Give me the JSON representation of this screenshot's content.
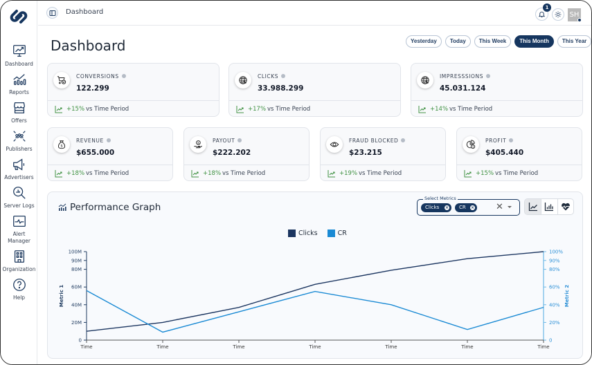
{
  "app": {
    "breadcrumb": "Dashboard",
    "notifications_count": "1",
    "avatar_initials": "SH"
  },
  "sidebar": {
    "items": [
      {
        "label": "Dashboard",
        "icon": "monitor-chart-icon"
      },
      {
        "label": "Reports",
        "icon": "bar-trend-icon"
      },
      {
        "label": "Offers",
        "icon": "store-icon"
      },
      {
        "label": "Publishers",
        "icon": "users-network-icon"
      },
      {
        "label": "Advertisers",
        "icon": "megaphone-icon"
      },
      {
        "label": "Server Logs",
        "icon": "search-chart-icon"
      },
      {
        "label": "Alert Manager",
        "icon": "pulse-monitor-icon"
      },
      {
        "label": "Organization",
        "icon": "building-icon"
      },
      {
        "label": "Help",
        "icon": "help-circle-icon"
      }
    ]
  },
  "page": {
    "title": "Dashboard",
    "periods": [
      "Yesterday",
      "Today",
      "This Week",
      "This Month",
      "This Year"
    ],
    "active_period": "This Month"
  },
  "cards": [
    {
      "label": "CONVERSIONS",
      "value": "122.299",
      "change": "+15%",
      "compare": "vs  Time Period",
      "icon": "cart-check-icon"
    },
    {
      "label": "CLICKS",
      "value": "33.988.299",
      "change": "+17%",
      "compare": "vs  Time Period",
      "icon": "globe-cursor-icon"
    },
    {
      "label": "IMPRESSSIONS",
      "value": "45.031.124",
      "change": "+14%",
      "compare": "vs  Time Period",
      "icon": "globe-cursor-icon"
    },
    {
      "label": "REVENUE",
      "value": "$655.000",
      "change": "+18%",
      "compare": "vs  Time Period",
      "icon": "money-bag-icon"
    },
    {
      "label": "PAYOUT",
      "value": "$222.202",
      "change": "+18%",
      "compare": "vs  Time Period",
      "icon": "hand-coin-icon"
    },
    {
      "label": "FRAUD BLOCKED",
      "value": "$23.215",
      "change": "+19%",
      "compare": "vs  Time Period",
      "icon": "eye-icon"
    },
    {
      "label": "PROFIT",
      "value": "$405.440",
      "change": "+15%",
      "compare": "vs  Time Period",
      "icon": "pie-dollar-icon"
    }
  ],
  "graph": {
    "title": "Performance Graph",
    "select_label": "Select Metrics",
    "selected_metrics": [
      "Clicks",
      "CR"
    ]
  },
  "colors": {
    "primary": "#16365f",
    "clicks": "#1b3560",
    "cr": "#1a8ad4",
    "positive": "#3f9142"
  },
  "chart_data": {
    "type": "line",
    "categories": [
      "Time",
      "Time",
      "Time",
      "Time",
      "Time",
      "Time",
      "Time"
    ],
    "series": [
      {
        "name": "Clicks",
        "axis": "left",
        "values": [
          10,
          20,
          37,
          63,
          79,
          92,
          100
        ]
      },
      {
        "name": "CR",
        "axis": "right",
        "values": [
          56,
          9,
          32,
          55,
          40,
          12,
          37
        ]
      }
    ],
    "y_left": {
      "label": "Metric 1",
      "range": [
        0,
        100
      ],
      "ticks": [
        "0",
        "20M",
        "40M",
        "60M",
        "80M",
        "90M",
        "100M"
      ],
      "tick_values": [
        0,
        20,
        40,
        60,
        80,
        90,
        100
      ]
    },
    "y_right": {
      "label": "Metric 2",
      "range": [
        0,
        100
      ],
      "ticks": [
        "0",
        "20%",
        "40%",
        "60%",
        "80%",
        "90%",
        "100%"
      ],
      "tick_values": [
        0,
        20,
        40,
        60,
        80,
        90,
        100
      ]
    },
    "legend": "top-center",
    "grid": false
  }
}
